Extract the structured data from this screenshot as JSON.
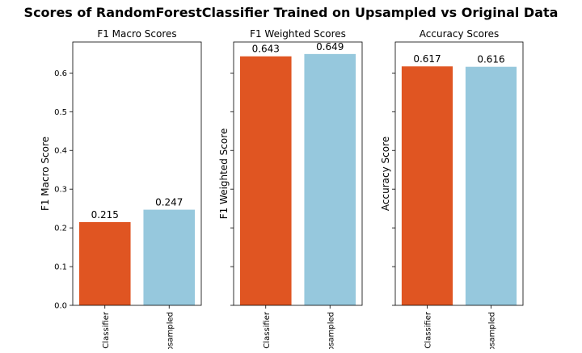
{
  "figure": {
    "title": "Scores of RandomForestClassifier Trained on Upsampled vs Original Data"
  },
  "chart_data": [
    {
      "type": "bar",
      "title": "F1 Macro Scores",
      "xlabel": "",
      "ylabel": "F1 Macro Score",
      "categories": [
        "Classifier",
        "Upsampled"
      ],
      "values": [
        0.215,
        0.247
      ],
      "value_labels": [
        "0.215",
        "0.247"
      ],
      "colors": [
        "#e05522",
        "#96c8dd"
      ],
      "ylim": [
        0,
        0.68
      ],
      "yticks": [
        0.0,
        0.1,
        0.2,
        0.3,
        0.4,
        0.5,
        0.6
      ],
      "ytick_labels": [
        "0.0",
        "0.1",
        "0.2",
        "0.3",
        "0.4",
        "0.5",
        "0.6"
      ],
      "grid": false
    },
    {
      "type": "bar",
      "title": "F1 Weighted Scores",
      "xlabel": "",
      "ylabel": "F1 Weighted Score",
      "categories": [
        "Classifier",
        "Upsampled"
      ],
      "values": [
        0.643,
        0.649
      ],
      "value_labels": [
        "0.643",
        "0.649"
      ],
      "colors": [
        "#e05522",
        "#96c8dd"
      ],
      "ylim": [
        0,
        0.68
      ],
      "yticks": [
        0.0,
        0.1,
        0.2,
        0.3,
        0.4,
        0.5,
        0.6
      ],
      "ytick_labels": [],
      "grid": false
    },
    {
      "type": "bar",
      "title": "Accuracy Scores",
      "xlabel": "",
      "ylabel": "Accuracy Score",
      "categories": [
        "Classifier",
        "Upsampled"
      ],
      "values": [
        0.617,
        0.616
      ],
      "value_labels": [
        "0.617",
        "0.616"
      ],
      "colors": [
        "#e05522",
        "#96c8dd"
      ],
      "ylim": [
        0,
        0.68
      ],
      "yticks": [
        0.0,
        0.1,
        0.2,
        0.3,
        0.4,
        0.5,
        0.6
      ],
      "ytick_labels": [],
      "grid": false
    }
  ]
}
